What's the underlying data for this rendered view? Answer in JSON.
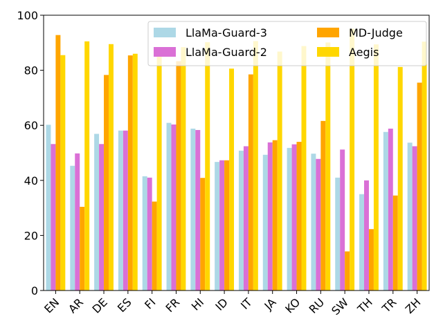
{
  "chart_data": {
    "type": "bar",
    "title": "",
    "xlabel": "",
    "ylabel": "",
    "ylim": [
      0,
      100
    ],
    "yticks": [
      0,
      20,
      40,
      60,
      80,
      100
    ],
    "grid": false,
    "legend_position": "top-right",
    "categories": [
      "EN",
      "AR",
      "DE",
      "ES",
      "FI",
      "FR",
      "HI",
      "ID",
      "IT",
      "JA",
      "KO",
      "RU",
      "SW",
      "TH",
      "TR",
      "ZH"
    ],
    "series": [
      {
        "name": "LlaMa-Guard-3",
        "color": "#add8e6",
        "values": [
          60.2,
          45.3,
          56.9,
          58.1,
          41.5,
          60.9,
          58.8,
          46.7,
          50.8,
          49.3,
          51.8,
          49.7,
          41.0,
          35.0,
          57.6,
          53.7
        ]
      },
      {
        "name": "LlaMa-Guard-2",
        "color": "#da70d6",
        "values": [
          53.2,
          49.8,
          53.2,
          58.1,
          41.0,
          60.3,
          58.3,
          47.3,
          52.4,
          53.8,
          53.1,
          47.8,
          51.2,
          40.0,
          58.8,
          52.4
        ]
      },
      {
        "name": "MD-Judge",
        "color": "#ffa500",
        "values": [
          92.8,
          30.4,
          78.3,
          85.4,
          32.3,
          83.3,
          40.9,
          47.3,
          78.5,
          54.6,
          54.0,
          61.6,
          14.2,
          22.3,
          34.5,
          75.5
        ]
      },
      {
        "name": "Aegis",
        "color": "#ffd700",
        "values": [
          85.5,
          90.5,
          89.5,
          86.0,
          86.6,
          88.4,
          90.2,
          80.6,
          90.6,
          86.8,
          88.8,
          90.1,
          95.1,
          89.4,
          81.2,
          90.4
        ]
      }
    ],
    "legend_layout": [
      [
        "LlaMa-Guard-3",
        "MD-Judge"
      ],
      [
        "LlaMa-Guard-2",
        "Aegis"
      ]
    ]
  }
}
